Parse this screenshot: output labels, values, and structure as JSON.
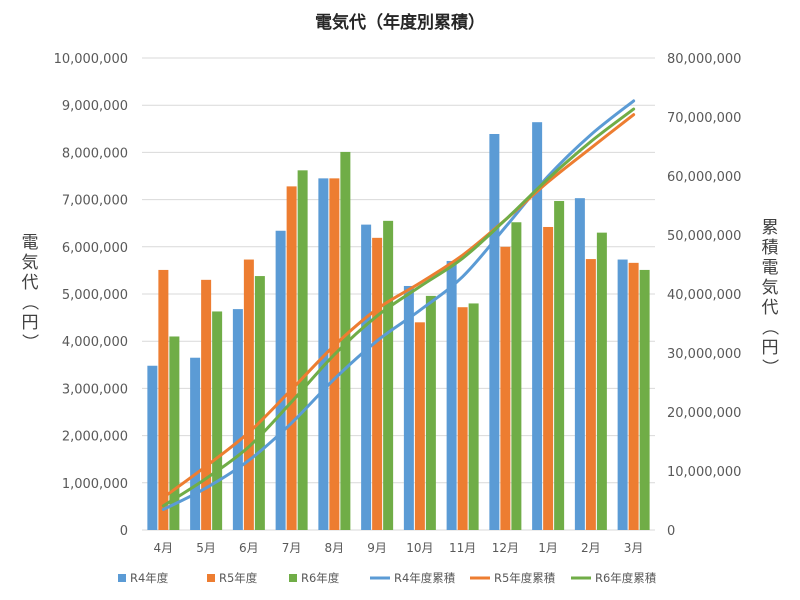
{
  "chart_data": {
    "type": "bar",
    "title": "電気代（年度別累積）",
    "categories": [
      "4月",
      "5月",
      "6月",
      "7月",
      "8月",
      "9月",
      "10月",
      "11月",
      "12月",
      "1月",
      "2月",
      "3月"
    ],
    "ylabel": "電気代（円）",
    "y2label": "累積電気代（円）",
    "ylim": [
      0,
      10000000
    ],
    "y2lim": [
      0,
      80000000
    ],
    "y_ticks": [
      "0",
      "1,000,000",
      "2,000,000",
      "3,000,000",
      "4,000,000",
      "5,000,000",
      "6,000,000",
      "7,000,000",
      "8,000,000",
      "9,000,000",
      "10,000,000"
    ],
    "y2_ticks": [
      "0",
      "10,000,000",
      "20,000,000",
      "30,000,000",
      "40,000,000",
      "50,000,000",
      "60,000,000",
      "70,000,000",
      "80,000,000"
    ],
    "grid": true,
    "legend_position": "bottom",
    "series": [
      {
        "name": "R4年度",
        "type": "bar",
        "axis": "left",
        "color": "#5B9BD5",
        "values": [
          3480000,
          3650000,
          4680000,
          6340000,
          7450000,
          6470000,
          5170000,
          5700000,
          8390000,
          8640000,
          7030000,
          5730000
        ]
      },
      {
        "name": "R5年度",
        "type": "bar",
        "axis": "left",
        "color": "#ED7D31",
        "values": [
          5510000,
          5300000,
          5730000,
          7280000,
          7450000,
          6190000,
          4400000,
          4720000,
          6000000,
          6420000,
          5740000,
          5660000
        ]
      },
      {
        "name": "R6年度",
        "type": "bar",
        "axis": "left",
        "color": "#70AD47",
        "values": [
          4100000,
          4630000,
          5380000,
          7620000,
          8010000,
          6550000,
          4960000,
          4800000,
          6520000,
          6970000,
          6300000,
          5510000
        ]
      },
      {
        "name": "R4年度累積",
        "type": "line",
        "axis": "right",
        "color": "#5B9BD5",
        "values": [
          3480000,
          7130000,
          11810000,
          18150000,
          25600000,
          32070000,
          37240000,
          42940000,
          51330000,
          59970000,
          67000000,
          72730000
        ]
      },
      {
        "name": "R5年度累積",
        "type": "line",
        "axis": "right",
        "color": "#ED7D31",
        "values": [
          5510000,
          10810000,
          16540000,
          23820000,
          31270000,
          37460000,
          41860000,
          46580000,
          52580000,
          59000000,
          64740000,
          70400000
        ]
      },
      {
        "name": "R6年度累積",
        "type": "line",
        "axis": "right",
        "color": "#70AD47",
        "values": [
          4100000,
          8730000,
          14110000,
          21730000,
          29740000,
          36290000,
          41250000,
          46050000,
          52570000,
          59540000,
          65840000,
          71350000
        ]
      }
    ]
  }
}
